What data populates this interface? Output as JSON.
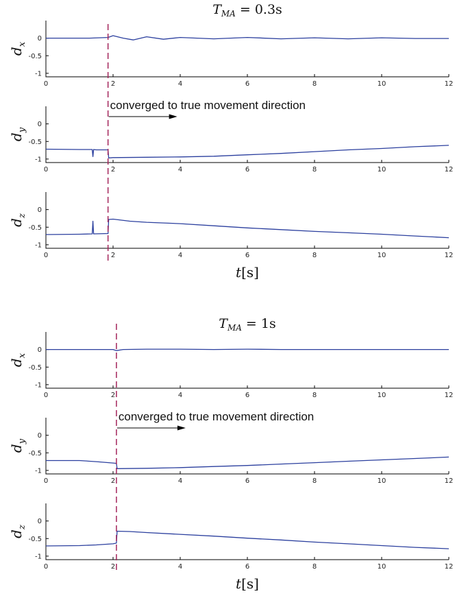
{
  "colors": {
    "series": "#2b3f9e",
    "marker": "#a3245a",
    "axis": "#000000",
    "arrow": "#000000"
  },
  "figure": {
    "xlabel": {
      "var": "t",
      "unit": "s"
    },
    "xticks": [
      0,
      2,
      4,
      6,
      8,
      10,
      12
    ],
    "xlim": [
      0,
      12
    ],
    "ylim": [
      -1.1,
      0.5
    ],
    "yticks": [
      0,
      -0.5,
      -1
    ],
    "ytick_labels": [
      "0",
      "-0.5",
      "-1"
    ],
    "annotation": "converged to true movement direction"
  },
  "chart_data": [
    {
      "type": "line",
      "title": {
        "var": "T",
        "sub": "MA",
        "rel": " = ",
        "value": "0.3s"
      },
      "marker_x": 1.85,
      "annotation_panel": 1,
      "panels": [
        {
          "ylabel": {
            "var": "d",
            "sub": "x"
          },
          "series": [
            {
              "x": [
                0,
                1.3,
                1.85,
                2.0,
                2.3,
                2.6,
                3.0,
                3.5,
                4.0,
                5.0,
                6.0,
                7.0,
                8.0,
                9.0,
                10.0,
                11.0,
                12.0
              ],
              "y": [
                0.0,
                0.0,
                0.02,
                0.07,
                0.0,
                -0.05,
                0.04,
                -0.03,
                0.02,
                -0.02,
                0.02,
                -0.02,
                0.01,
                -0.02,
                0.01,
                -0.01,
                -0.01
              ]
            }
          ]
        },
        {
          "ylabel": {
            "var": "d",
            "sub": "y"
          },
          "series": [
            {
              "x": [
                0,
                1.0,
                1.3,
                1.38,
                1.4,
                1.42,
                1.5,
                1.85,
                1.87,
                2.0,
                3.0,
                4.0,
                5.0,
                6.0,
                7.0,
                8.0,
                9.0,
                10.0,
                11.0,
                12.0
              ],
              "y": [
                -0.72,
                -0.73,
                -0.73,
                -0.73,
                -0.93,
                -0.73,
                -0.74,
                -0.74,
                -0.97,
                -0.96,
                -0.95,
                -0.94,
                -0.92,
                -0.88,
                -0.84,
                -0.79,
                -0.74,
                -0.7,
                -0.65,
                -0.61
              ]
            }
          ]
        },
        {
          "ylabel": {
            "var": "d",
            "sub": "z"
          },
          "series": [
            {
              "x": [
                0,
                1.0,
                1.38,
                1.4,
                1.42,
                1.85,
                1.87,
                2.0,
                2.5,
                3.0,
                4.0,
                5.0,
                6.0,
                7.0,
                8.0,
                9.0,
                10.0,
                11.0,
                12.0
              ],
              "y": [
                -0.71,
                -0.7,
                -0.69,
                -0.33,
                -0.69,
                -0.68,
                -0.28,
                -0.27,
                -0.33,
                -0.36,
                -0.4,
                -0.46,
                -0.52,
                -0.57,
                -0.62,
                -0.66,
                -0.7,
                -0.75,
                -0.8
              ]
            }
          ]
        }
      ]
    },
    {
      "type": "line",
      "title": {
        "var": "T",
        "sub": "MA",
        "rel": " = ",
        "value": "1s"
      },
      "marker_x": 2.1,
      "annotation_panel": 1,
      "panels": [
        {
          "ylabel": {
            "var": "d",
            "sub": "x"
          },
          "series": [
            {
              "x": [
                0,
                1.0,
                2.0,
                2.1,
                2.3,
                3.0,
                4.0,
                5.0,
                6.0,
                7.0,
                8.0,
                9.0,
                10.0,
                11.0,
                12.0
              ],
              "y": [
                0.0,
                0.0,
                0.0,
                -0.03,
                0.0,
                0.01,
                0.01,
                0.0,
                0.01,
                0.0,
                0.0,
                0.0,
                0.0,
                0.0,
                0.0
              ]
            }
          ]
        },
        {
          "ylabel": {
            "var": "d",
            "sub": "y"
          },
          "series": [
            {
              "x": [
                0,
                1.0,
                1.5,
                2.0,
                2.1,
                2.12,
                3.0,
                4.0,
                5.0,
                6.0,
                7.0,
                8.0,
                9.0,
                10.0,
                11.0,
                12.0
              ],
              "y": [
                -0.72,
                -0.72,
                -0.75,
                -0.79,
                -0.8,
                -0.95,
                -0.94,
                -0.92,
                -0.89,
                -0.86,
                -0.82,
                -0.78,
                -0.74,
                -0.7,
                -0.66,
                -0.62
              ]
            }
          ]
        },
        {
          "ylabel": {
            "var": "d",
            "sub": "z"
          },
          "series": [
            {
              "x": [
                0,
                1.0,
                1.5,
                2.0,
                2.1,
                2.12,
                2.5,
                3.0,
                4.0,
                5.0,
                6.0,
                7.0,
                8.0,
                9.0,
                10.0,
                11.0,
                12.0
              ],
              "y": [
                -0.71,
                -0.7,
                -0.68,
                -0.65,
                -0.63,
                -0.29,
                -0.3,
                -0.33,
                -0.38,
                -0.43,
                -0.49,
                -0.54,
                -0.6,
                -0.65,
                -0.7,
                -0.75,
                -0.79
              ]
            }
          ]
        }
      ]
    }
  ]
}
